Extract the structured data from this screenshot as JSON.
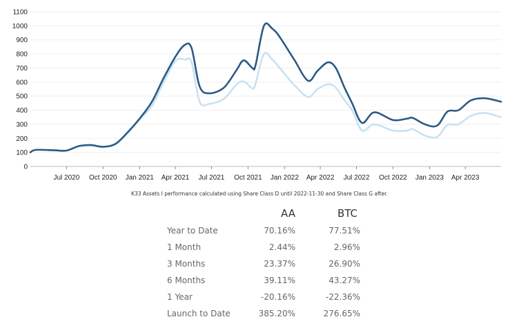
{
  "chart_data": {
    "type": "line",
    "title": "",
    "xlabel": "",
    "ylabel": "",
    "ylim": [
      0,
      1100
    ],
    "yticks": [
      0,
      100,
      200,
      300,
      400,
      500,
      600,
      700,
      800,
      900,
      1000,
      1100
    ],
    "x_tick_labels": [
      "Jul 2020",
      "Oct 2020",
      "Jan 2021",
      "Apr 2021",
      "Jul 2021",
      "Oct 2021",
      "Jan 2022",
      "Apr 2022",
      "Jul 2022",
      "Oct 2022",
      "Jan 2023",
      "Apr 2023"
    ],
    "x_tick_dates": [
      "2020-07-01",
      "2020-10-01",
      "2021-01-01",
      "2021-04-01",
      "2021-07-01",
      "2021-10-01",
      "2022-01-01",
      "2022-04-01",
      "2022-07-01",
      "2022-10-01",
      "2023-01-01",
      "2023-04-01"
    ],
    "xlim": [
      "2020-04-01",
      "2023-06-30"
    ],
    "grid": true,
    "series": [
      {
        "color": "#2b5a85",
        "points": [
          [
            "2020-04-01",
            100
          ],
          [
            "2020-04-15",
            118
          ],
          [
            "2020-06-01",
            115
          ],
          [
            "2020-07-01",
            113
          ],
          [
            "2020-08-01",
            145
          ],
          [
            "2020-09-01",
            152
          ],
          [
            "2020-10-01",
            140
          ],
          [
            "2020-11-01",
            160
          ],
          [
            "2020-12-01",
            240
          ],
          [
            "2021-01-01",
            340
          ],
          [
            "2021-02-01",
            460
          ],
          [
            "2021-03-01",
            620
          ],
          [
            "2021-04-01",
            780
          ],
          [
            "2021-04-25",
            865
          ],
          [
            "2021-05-12",
            840
          ],
          [
            "2021-06-01",
            570
          ],
          [
            "2021-06-25",
            520
          ],
          [
            "2021-08-01",
            560
          ],
          [
            "2021-09-01",
            680
          ],
          [
            "2021-09-20",
            755
          ],
          [
            "2021-10-12",
            700
          ],
          [
            "2021-10-20",
            720
          ],
          [
            "2021-11-10",
            1000
          ],
          [
            "2021-12-01",
            980
          ],
          [
            "2021-12-20",
            920
          ],
          [
            "2022-01-25",
            760
          ],
          [
            "2022-03-01",
            610
          ],
          [
            "2022-03-25",
            680
          ],
          [
            "2022-04-20",
            740
          ],
          [
            "2022-05-10",
            700
          ],
          [
            "2022-06-01",
            560
          ],
          [
            "2022-06-20",
            450
          ],
          [
            "2022-07-15",
            310
          ],
          [
            "2022-08-15",
            385
          ],
          [
            "2022-10-01",
            330
          ],
          [
            "2022-11-05",
            340
          ],
          [
            "2022-11-20",
            345
          ],
          [
            "2022-12-20",
            300
          ],
          [
            "2023-01-20",
            290
          ],
          [
            "2023-02-15",
            390
          ],
          [
            "2023-03-15",
            400
          ],
          [
            "2023-04-15",
            470
          ],
          [
            "2023-05-20",
            485
          ],
          [
            "2023-06-30",
            460
          ]
        ]
      },
      {
        "color": "#c8e2f2",
        "points": [
          [
            "2020-04-01",
            100
          ],
          [
            "2020-04-15",
            118
          ],
          [
            "2020-06-01",
            115
          ],
          [
            "2020-07-01",
            113
          ],
          [
            "2020-08-01",
            143
          ],
          [
            "2020-09-01",
            148
          ],
          [
            "2020-10-01",
            140
          ],
          [
            "2020-11-01",
            158
          ],
          [
            "2020-12-01",
            235
          ],
          [
            "2021-01-01",
            335
          ],
          [
            "2021-02-01",
            430
          ],
          [
            "2021-03-01",
            590
          ],
          [
            "2021-04-01",
            750
          ],
          [
            "2021-04-25",
            760
          ],
          [
            "2021-05-12",
            740
          ],
          [
            "2021-06-01",
            460
          ],
          [
            "2021-06-25",
            445
          ],
          [
            "2021-08-01",
            480
          ],
          [
            "2021-09-01",
            580
          ],
          [
            "2021-09-20",
            605
          ],
          [
            "2021-10-12",
            555
          ],
          [
            "2021-10-20",
            590
          ],
          [
            "2021-11-10",
            800
          ],
          [
            "2021-12-01",
            760
          ],
          [
            "2021-12-20",
            700
          ],
          [
            "2022-01-25",
            580
          ],
          [
            "2022-03-01",
            495
          ],
          [
            "2022-03-25",
            550
          ],
          [
            "2022-04-20",
            585
          ],
          [
            "2022-05-10",
            560
          ],
          [
            "2022-06-01",
            470
          ],
          [
            "2022-06-20",
            400
          ],
          [
            "2022-07-15",
            255
          ],
          [
            "2022-08-15",
            300
          ],
          [
            "2022-10-01",
            255
          ],
          [
            "2022-11-05",
            255
          ],
          [
            "2022-11-20",
            265
          ],
          [
            "2022-12-20",
            220
          ],
          [
            "2023-01-20",
            210
          ],
          [
            "2023-02-15",
            295
          ],
          [
            "2023-03-15",
            300
          ],
          [
            "2023-04-15",
            360
          ],
          [
            "2023-05-20",
            380
          ],
          [
            "2023-06-30",
            350
          ]
        ]
      }
    ]
  },
  "caption": "K33 Assets I performance calculated using Share Class D until 2022-11-30 and Share Class G after.",
  "table": {
    "headers": [
      "",
      "AA",
      "BTC"
    ],
    "rows": [
      {
        "label": "Year to Date",
        "aa": "70.16%",
        "btc": "77.51%"
      },
      {
        "label": "1 Month",
        "aa": "2.44%",
        "btc": "2.96%"
      },
      {
        "label": "3 Months",
        "aa": "23.37%",
        "btc": "26.90%"
      },
      {
        "label": "6 Months",
        "aa": "39.11%",
        "btc": "43.27%"
      },
      {
        "label": "1 Year",
        "aa": "-20.16%",
        "btc": "-22.36%"
      },
      {
        "label": "Launch to Date",
        "aa": "385.20%",
        "btc": "276.65%"
      }
    ]
  }
}
